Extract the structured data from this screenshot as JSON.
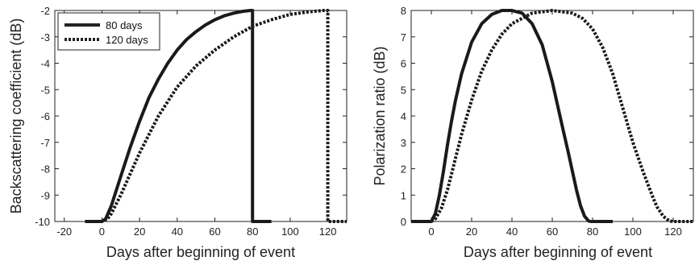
{
  "chart_data": [
    {
      "type": "line",
      "xlabel": "Days after beginning of event",
      "ylabel": "Backscattering coefficient (dB)",
      "xlim": [
        -25,
        130
      ],
      "ylim": [
        -10,
        -2
      ],
      "xticks": [
        -20,
        0,
        20,
        40,
        60,
        80,
        100,
        120
      ],
      "yticks": [
        -10,
        -9,
        -8,
        -7,
        -6,
        -5,
        -4,
        -3,
        -2
      ],
      "grid": false,
      "legend": "top-left",
      "series": [
        {
          "name": "80 days",
          "style": "solid",
          "x": [
            -9,
            -5,
            0,
            2,
            5,
            10,
            15,
            20,
            25,
            30,
            35,
            40,
            45,
            50,
            55,
            60,
            65,
            70,
            75,
            79,
            80,
            80,
            85,
            90
          ],
          "values": [
            -10,
            -10,
            -10,
            -9.9,
            -9.4,
            -8.3,
            -7.2,
            -6.2,
            -5.3,
            -4.6,
            -4.0,
            -3.5,
            -3.1,
            -2.8,
            -2.55,
            -2.35,
            -2.2,
            -2.1,
            -2.03,
            -2.0,
            -2.0,
            -10,
            -10,
            -10
          ]
        },
        {
          "name": "120 days",
          "style": "dotted",
          "x": [
            -5,
            0,
            3,
            5,
            10,
            15,
            20,
            25,
            30,
            40,
            50,
            60,
            70,
            80,
            90,
            100,
            110,
            118,
            120,
            120,
            125,
            130
          ],
          "values": [
            -10,
            -10,
            -9.9,
            -9.7,
            -9.0,
            -8.2,
            -7.4,
            -6.7,
            -6.0,
            -4.9,
            -4.1,
            -3.5,
            -3.0,
            -2.6,
            -2.35,
            -2.15,
            -2.05,
            -2.0,
            -2.0,
            -10,
            -10,
            -10
          ]
        }
      ]
    },
    {
      "type": "line",
      "xlabel": "Days after beginning of event",
      "ylabel": "Polarization ratio (dB)",
      "xlim": [
        -10,
        130
      ],
      "ylim": [
        0,
        8
      ],
      "xticks": [
        0,
        20,
        40,
        60,
        80,
        100,
        120
      ],
      "yticks": [
        0,
        1,
        2,
        3,
        4,
        5,
        6,
        7,
        8
      ],
      "grid": false,
      "legend": "none",
      "series": [
        {
          "name": "80 days",
          "style": "solid",
          "x": [
            -10,
            -5,
            0,
            2,
            4,
            6,
            8,
            10,
            12,
            15,
            20,
            25,
            30,
            35,
            40,
            45,
            50,
            55,
            60,
            65,
            68,
            70,
            72,
            74,
            76,
            78,
            79,
            80,
            85,
            90
          ],
          "values": [
            0,
            0,
            0,
            0.3,
            1.0,
            1.9,
            2.9,
            3.8,
            4.6,
            5.6,
            6.8,
            7.5,
            7.85,
            8.0,
            8.0,
            7.9,
            7.5,
            6.7,
            5.3,
            3.6,
            2.6,
            1.9,
            1.2,
            0.6,
            0.2,
            0.02,
            0,
            0,
            0,
            0
          ]
        },
        {
          "name": "120 days",
          "style": "dotted",
          "x": [
            0,
            2,
            5,
            8,
            10,
            15,
            20,
            25,
            30,
            35,
            40,
            50,
            60,
            70,
            75,
            80,
            85,
            90,
            95,
            100,
            105,
            108,
            110,
            112,
            115,
            118,
            120,
            125,
            130
          ],
          "values": [
            0,
            0.1,
            0.5,
            1.2,
            1.8,
            3.3,
            4.6,
            5.7,
            6.5,
            7.1,
            7.5,
            7.9,
            8.0,
            7.9,
            7.7,
            7.3,
            6.6,
            5.6,
            4.3,
            3.0,
            1.9,
            1.3,
            0.9,
            0.55,
            0.2,
            0.02,
            0,
            0,
            0
          ]
        }
      ]
    }
  ]
}
